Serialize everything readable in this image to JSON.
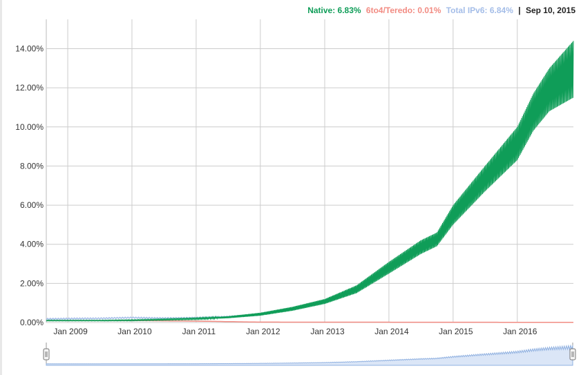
{
  "legend": {
    "native": "Native: 6.83%",
    "teredo": "6to4/Teredo: 0.01%",
    "total": "Total IPv6: 6.84%",
    "separator": "|",
    "date": "Sep 10, 2015"
  },
  "colors": {
    "native": "#0f9d58",
    "teredo": "#f28b82",
    "total": "#a4bde8",
    "grid": "#cccccc",
    "text": "#333333",
    "navigator_fill": "#dbe6f7",
    "navigator_line": "#8fb0e0"
  },
  "chart_data": {
    "type": "line",
    "title": "",
    "xlabel": "",
    "ylabel": "",
    "ylim": [
      0,
      15.5
    ],
    "yticks": [
      "0.00%",
      "2.00%",
      "4.00%",
      "6.00%",
      "8.00%",
      "10.00%",
      "12.00%",
      "14.00%"
    ],
    "ytick_values": [
      0,
      2,
      4,
      6,
      8,
      10,
      12,
      14
    ],
    "xlim": [
      "2008-09-01",
      "2016-11-15"
    ],
    "xticks": [
      "Jan 2009",
      "Jan 2010",
      "Jan 2011",
      "Jan 2012",
      "Jan 2013",
      "Jan 2014",
      "Jan 2015",
      "Jan 2016"
    ],
    "xtick_dates": [
      "2009-01-01",
      "2010-01-01",
      "2011-01-01",
      "2012-01-01",
      "2013-01-01",
      "2014-01-01",
      "2015-01-01",
      "2016-01-01"
    ],
    "grid": true,
    "legend_position": "top-right",
    "series": [
      {
        "name": "Native",
        "x": [
          "2008-09-01",
          "2009-01-01",
          "2009-07-01",
          "2010-01-01",
          "2010-07-01",
          "2011-01-01",
          "2011-07-01",
          "2012-01-01",
          "2012-07-01",
          "2013-01-01",
          "2013-07-01",
          "2014-01-01",
          "2014-07-01",
          "2014-10-01",
          "2015-01-01",
          "2015-07-01",
          "2016-01-01",
          "2016-04-01",
          "2016-07-01",
          "2016-11-15"
        ],
        "low": [
          0.08,
          0.08,
          0.08,
          0.09,
          0.12,
          0.16,
          0.22,
          0.35,
          0.6,
          0.95,
          1.5,
          2.5,
          3.5,
          3.9,
          5.0,
          6.7,
          8.3,
          9.8,
          10.8,
          11.5
        ],
        "high": [
          0.12,
          0.12,
          0.12,
          0.14,
          0.18,
          0.23,
          0.32,
          0.5,
          0.8,
          1.2,
          1.9,
          3.1,
          4.2,
          4.6,
          6.0,
          8.0,
          10.0,
          11.7,
          13.0,
          14.4
        ]
      },
      {
        "name": "6to4/Teredo",
        "x": [
          "2008-09-01",
          "2010-01-01",
          "2011-01-01",
          "2012-01-01",
          "2016-11-15"
        ],
        "values": [
          0.1,
          0.1,
          0.07,
          0.02,
          0.01
        ]
      },
      {
        "name": "Total IPv6",
        "x": [
          "2008-09-01",
          "2009-01-01",
          "2009-07-01",
          "2010-01-01",
          "2010-07-01",
          "2011-01-01",
          "2011-07-01",
          "2012-01-01"
        ],
        "values": [
          0.18,
          0.2,
          0.21,
          0.25,
          0.22,
          0.24,
          0.3,
          0.4
        ]
      }
    ]
  }
}
